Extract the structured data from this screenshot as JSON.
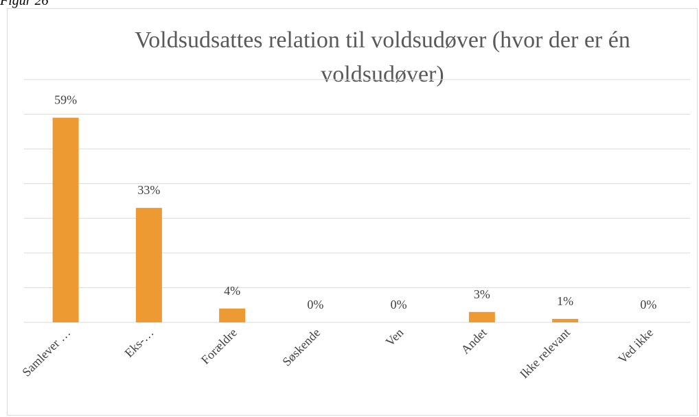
{
  "caption": "Figur 26",
  "chart_data": {
    "type": "bar",
    "title": "Voldsudsattes relation til voldsudøver (hvor der er én voldsudøver)",
    "categories": [
      "Samlever …",
      "Eks-…",
      "Forældre",
      "Søskende",
      "Ven",
      "Andet",
      "Ikke relevant",
      "Ved ikke"
    ],
    "values": [
      59,
      33,
      4,
      0,
      0,
      3,
      1,
      0
    ],
    "value_labels": [
      "59%",
      "33%",
      "4%",
      "0%",
      "0%",
      "3%",
      "1%",
      "0%"
    ],
    "color": "#ed9a33",
    "ylim": [
      0,
      70
    ],
    "yticks": [
      0,
      10,
      20,
      30,
      40,
      50,
      60,
      70
    ],
    "grid": true
  }
}
